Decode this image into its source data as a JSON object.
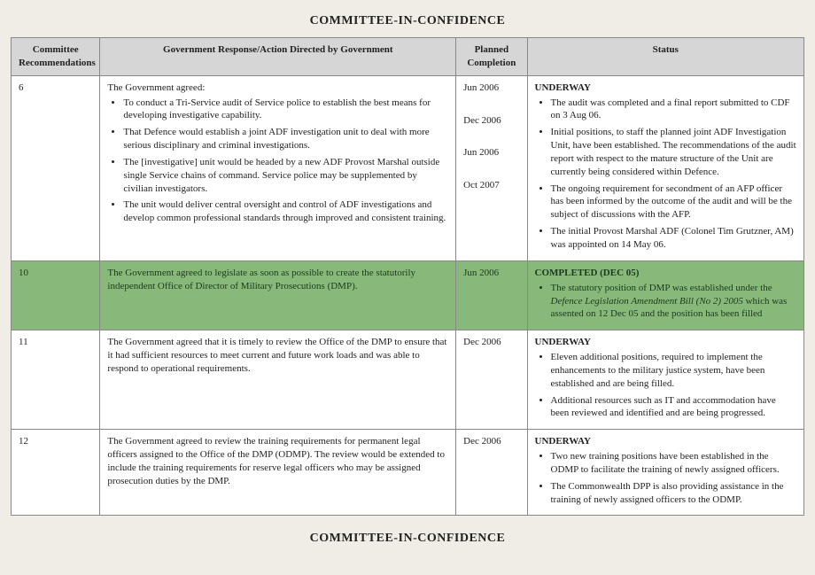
{
  "title": "COMMITTEE-IN-CONFIDENCE",
  "footer": "COMMITTEE-IN-CONFIDENCE",
  "columns": {
    "c1": "Committee Recommendations",
    "c2": "Government Response/Action Directed by Government",
    "c3": "Planned Completion",
    "c4": "Status"
  },
  "rows": {
    "r6": {
      "num": "6",
      "lead": "The Government agreed:",
      "resp": [
        "To conduct a Tri-Service audit of Service police to establish the best means for developing investigative capability.",
        "That Defence would establish a joint ADF investigation unit to deal with more serious disciplinary and criminal investigations.",
        "The [investigative] unit would be headed by a new ADF Provost Marshal outside single Service chains of command.  Service police may be supplemented by civilian investigators.",
        "The unit would deliver central oversight and control of ADF investigations and develop common professional standards through improved and consistent training."
      ],
      "dates": [
        "Jun 2006",
        "Dec 2006",
        "Jun 2006",
        "Oct 2007"
      ],
      "statusHead": "UNDERWAY",
      "status": [
        "The audit was completed and a final report submitted to CDF on 3 Aug 06.",
        "Initial positions, to staff the planned joint ADF Investigation Unit, have been established. The recommendations of the audit report with respect to the mature structure of the Unit are currently being considered within Defence.",
        "The ongoing requirement for secondment of an AFP officer has been informed by the outcome of the audit and will be the subject of discussions with the AFP.",
        "The initial Provost Marshal ADF (Colonel Tim Grutzner, AM) was appointed on 14 May 06."
      ]
    },
    "r10": {
      "num": "10",
      "resp": "The Government agreed to legislate as soon as possible to create the statutorily independent Office of Director of Military Prosecutions (DMP).",
      "date": "Jun 2006",
      "statusHead": "COMPLETED (DEC 05)",
      "statusPre": "The statutory position of DMP was established under the ",
      "statusItalic": "Defence Legislation Amendment Bill (No 2) 2005",
      "statusPost": " which was assented on 12 Dec 05 and the position has been filled"
    },
    "r11": {
      "num": "11",
      "resp": "The Government agreed that it is timely to review the Office of the DMP to ensure that it had sufficient resources to meet current and future work loads and was able to respond to operational requirements.",
      "date": "Dec 2006",
      "statusHead": "UNDERWAY",
      "status": [
        "Eleven additional positions, required to implement the enhancements to the military justice system, have been established and are being filled.",
        "Additional resources such as IT and accommodation have been reviewed and identified and are being progressed."
      ]
    },
    "r12": {
      "num": "12",
      "resp": "The Government agreed to review the training requirements for permanent legal officers assigned to the Office of the DMP (ODMP).  The review would be extended to include the training requirements for reserve legal officers who may be assigned prosecution duties by the DMP.",
      "date": "Dec 2006",
      "statusHead": "UNDERWAY",
      "status": [
        "Two new training positions have been established in the ODMP to facilitate the training of newly assigned officers.",
        "The Commonwealth DPP is also providing assistance in the training of newly assigned officers to the ODMP."
      ]
    }
  }
}
